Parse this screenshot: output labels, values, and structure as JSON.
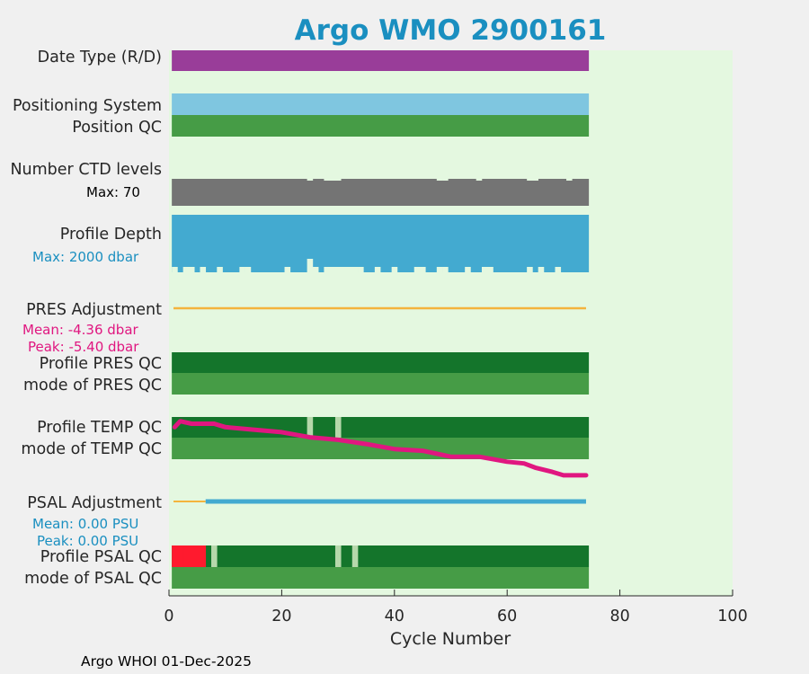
{
  "chart_data": {
    "type": "timeline",
    "title": "Argo WMO 2900161",
    "xlabel": "Cycle Number",
    "xlim": [
      0,
      100
    ],
    "xticks": [
      0,
      20,
      40,
      60,
      80,
      100
    ],
    "grid": false,
    "n_cycles": 74,
    "rows": [
      {
        "label": "Date Type (R/D)",
        "value": "D on all cycles"
      },
      {
        "label": "Positioning System",
        "value": "Argos on all cycles"
      },
      {
        "label": "Position QC",
        "value": "1 on all cycles"
      },
      {
        "label": "Number CTD levels",
        "max_label": "Max: 70",
        "reduced_cycles": [
          25,
          28,
          29,
          30,
          48,
          49,
          55,
          64,
          65,
          71
        ]
      },
      {
        "label": "Profile Depth",
        "max_label": "Max: 2000 dbar",
        "shallow_cycles": [
          1,
          3,
          4,
          6,
          9,
          13,
          14,
          21,
          25,
          26,
          28,
          29,
          30,
          31,
          32,
          33,
          34,
          37,
          40,
          44,
          45,
          48,
          49,
          53,
          56,
          57,
          64,
          66,
          69
        ],
        "deep_cycles": [
          25
        ]
      },
      {
        "label": "PRES Adjustment",
        "mean_label": "Mean: -4.36 dbar",
        "peak_label": "Peak: -5.40 dbar"
      },
      {
        "label": "Profile PRES QC",
        "value": "A on all cycles"
      },
      {
        "label": "mode of PRES QC",
        "value": "1 on all cycles"
      },
      {
        "label": "Profile TEMP QC",
        "value": "A except cycles 25 and 30 (B)",
        "b_cycles": [
          25,
          30
        ]
      },
      {
        "label": "mode of TEMP QC",
        "value": "1 on all cycles"
      },
      {
        "label": "PSAL Adjustment",
        "mean_label": "Mean: 0.00 PSU",
        "peak_label": "Peak: 0.00 PSU",
        "unadjusted_until_cycle": 6
      },
      {
        "label": "Profile PSAL QC",
        "value": "F on cycles 1-6, B on cycles 8, 30 and 33, A elsewhere",
        "f_cycles": [
          1,
          2,
          3,
          4,
          5,
          6
        ],
        "b_cycles": [
          8,
          30,
          33
        ]
      },
      {
        "label": "mode of PSAL QC",
        "value": "1 on all cycles"
      }
    ],
    "temp_trend_line": {
      "note": "relative position of the magenta line within the TEMP/PSAL band (0 = top of TEMP QC row, 1 = bottom of PSAL adjustment row)",
      "x": [
        1,
        2,
        4,
        8,
        10,
        15,
        20,
        25,
        30,
        35,
        40,
        45,
        50,
        55,
        60,
        63,
        65,
        68,
        70,
        74
      ],
      "y": [
        0.12,
        0.05,
        0.08,
        0.08,
        0.12,
        0.15,
        0.18,
        0.24,
        0.27,
        0.32,
        0.38,
        0.4,
        0.47,
        0.47,
        0.53,
        0.55,
        0.6,
        0.65,
        0.69,
        0.69
      ]
    },
    "colors": {
      "plot_bg": "#e4f8e0",
      "figure_bg": "#f0f0f0",
      "date_type": "#993d99",
      "positioning": "#7fc6e0",
      "qc_good": "#469c46",
      "qc_a": "#14752b",
      "qc_b": "#b6d8ab",
      "qc_f": "#ff1a2e",
      "levels": "#747474",
      "depth": "#43aad0",
      "pres_adj": "#f4b43d",
      "psal_adj": "#43aad0",
      "temp_line": "#e01780",
      "title": "#1a8fc0",
      "pink_note": "#e01780",
      "blue_note": "#1a8fc0"
    }
  },
  "footer": {
    "credit": "Argo WHOI 01-Dec-2025"
  }
}
